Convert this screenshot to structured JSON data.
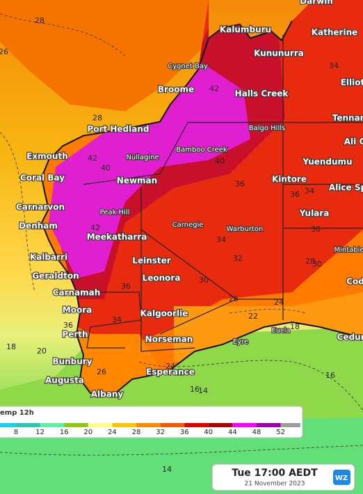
{
  "map": {
    "places": [
      "Darwin",
      "Kalumburu",
      "Katherine",
      "Kununurra",
      "Cygnet Bay",
      "Broome",
      "Halls Creek",
      "Elliot",
      "Tennan",
      "Balgo Hills",
      "Port Hedland",
      "Ali C",
      "Exmouth",
      "Nullagine",
      "Bamboo Creek",
      "Yuendumu",
      "Coral Bay",
      "Newman",
      "Kintore",
      "Alice Sp",
      "Carnarvon",
      "Peak Hill",
      "Yulara",
      "Denham",
      "Carnegie",
      "Warburton",
      "Mintabie",
      "Meekatharra",
      "Kalbarri",
      "Leinster",
      "Cod",
      "Geraldton",
      "Leonora",
      "Carnamah",
      "Moora",
      "Kalgoorlie",
      "Eucla",
      "Perth",
      "Ceduna",
      "Norseman",
      "Eyre",
      "Bunbury",
      "Esperance",
      "Augusta",
      "Albany"
    ],
    "contour_labels": [
      28,
      26,
      42,
      34,
      28,
      40,
      42,
      40,
      36,
      36,
      42,
      36,
      34,
      32,
      30,
      26,
      24,
      22,
      18,
      36,
      34,
      30,
      28,
      24,
      26,
      20,
      18,
      16,
      16,
      14,
      14,
      34,
      30
    ]
  },
  "legend": {
    "title": "emp 12h",
    "ticks": [
      8,
      12,
      16,
      20,
      24,
      28,
      32,
      36,
      40,
      44,
      48,
      52
    ],
    "colors": [
      "#19d3f0",
      "#2ec4b6",
      "#5ef0a0",
      "#8dc814",
      "#ffff8a",
      "#ffc400",
      "#ff8c00",
      "#f25a00",
      "#e30000",
      "#a80000",
      "#ff00ff",
      "#9b00a8",
      "#9e9e9e"
    ]
  },
  "time": {
    "label": "Tue 17:00 AEDT",
    "date": "21 November 2023",
    "logo": "WZ"
  }
}
